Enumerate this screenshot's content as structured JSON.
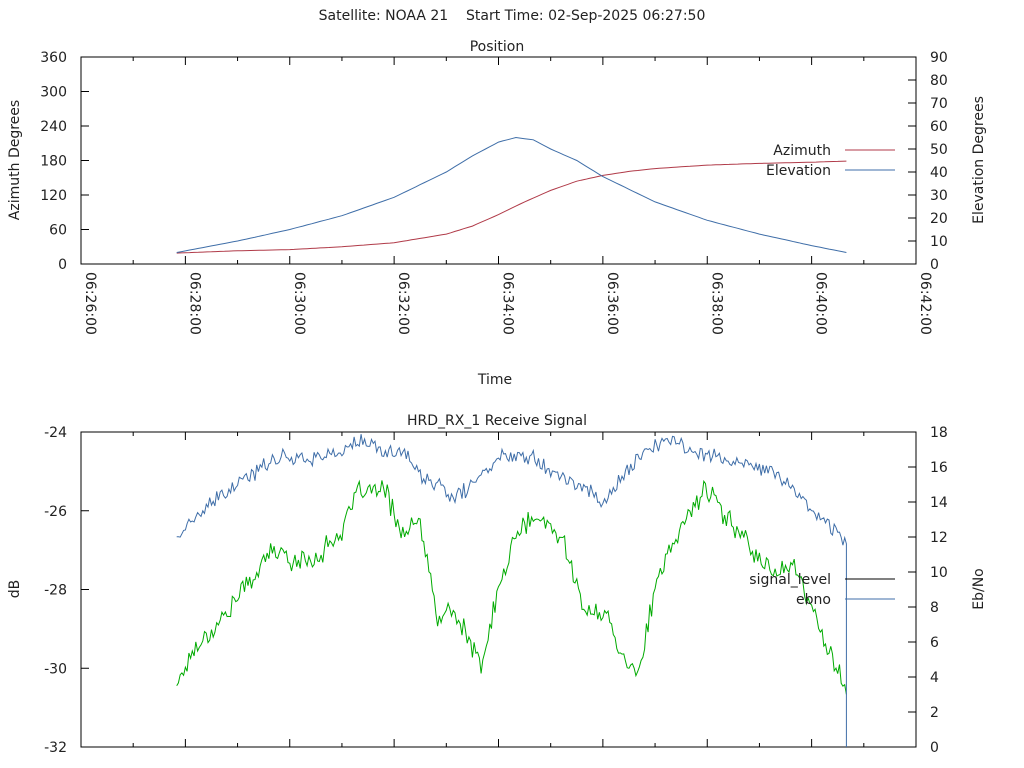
{
  "header": {
    "satellite": "Satellite: NOAA 21",
    "start_time": "Start Time: 02-Sep-2025 06:27:50"
  },
  "chart_data": [
    {
      "type": "line",
      "title": "Position",
      "xlabel": "Time",
      "ylabel": "Azimuth Degrees",
      "y2label": "Elevation Degrees",
      "xlim": [
        "06:26:00",
        "06:42:00"
      ],
      "ylim": [
        0,
        360
      ],
      "y2lim": [
        0,
        90
      ],
      "x_ticks": [
        "06:26:00",
        "06:28:00",
        "06:30:00",
        "06:32:00",
        "06:34:00",
        "06:36:00",
        "06:38:00",
        "06:40:00",
        "06:42:00"
      ],
      "y_ticks": [
        "0",
        "60",
        "120",
        "180",
        "240",
        "300",
        "360"
      ],
      "y2_ticks": [
        "0",
        "10",
        "20",
        "30",
        "40",
        "50",
        "60",
        "70",
        "80",
        "90"
      ],
      "legend_position": "right",
      "grid": false,
      "series": [
        {
          "name": "Azimuth",
          "axis": "left",
          "color": "#b03a48",
          "x": [
            "06:27:50",
            "06:29:00",
            "06:30:00",
            "06:31:00",
            "06:32:00",
            "06:33:00",
            "06:33:30",
            "06:34:00",
            "06:34:30",
            "06:35:00",
            "06:35:30",
            "06:36:00",
            "06:36:30",
            "06:37:00",
            "06:38:00",
            "06:39:00",
            "06:40:00",
            "06:40:40"
          ],
          "values": [
            19,
            23,
            25,
            30,
            37,
            52,
            66,
            86,
            108,
            128,
            144,
            154,
            161,
            166,
            172,
            175,
            177,
            179
          ]
        },
        {
          "name": "Elevation",
          "axis": "right",
          "color": "#3f6ea8",
          "x": [
            "06:27:50",
            "06:29:00",
            "06:30:00",
            "06:31:00",
            "06:32:00",
            "06:33:00",
            "06:33:30",
            "06:34:00",
            "06:34:20",
            "06:34:40",
            "06:35:00",
            "06:35:30",
            "06:36:00",
            "06:37:00",
            "06:38:00",
            "06:39:00",
            "06:40:00",
            "06:40:40"
          ],
          "values": [
            5,
            10,
            15,
            21,
            29,
            40,
            47,
            53,
            55,
            54,
            50,
            45,
            38,
            27,
            19,
            13,
            8,
            5
          ]
        }
      ]
    },
    {
      "type": "line",
      "title": "HRD_RX_1 Receive Signal",
      "ylabel": "dB",
      "y2label": "Eb/No",
      "xlim": [
        "06:26:00",
        "06:42:00"
      ],
      "ylim": [
        -32,
        -24
      ],
      "y2lim": [
        0,
        18
      ],
      "y_ticks": [
        "-24",
        "-26",
        "-28",
        "-30",
        "-32"
      ],
      "y2_ticks": [
        "0",
        "2",
        "4",
        "6",
        "8",
        "10",
        "12",
        "14",
        "16",
        "18"
      ],
      "legend_position": "right",
      "grid": false,
      "series": [
        {
          "name": "signal_level",
          "axis": "left",
          "color": "#00aa00",
          "legend_color": "#000000",
          "x": [
            "06:27:50",
            "06:28:10",
            "06:28:40",
            "06:29:10",
            "06:29:40",
            "06:30:10",
            "06:30:30",
            "06:31:00",
            "06:31:20",
            "06:31:50",
            "06:32:10",
            "06:32:30",
            "06:32:50",
            "06:33:05",
            "06:33:20",
            "06:33:40",
            "06:34:00",
            "06:34:20",
            "06:34:40",
            "06:35:00",
            "06:35:20",
            "06:35:40",
            "06:36:00",
            "06:36:20",
            "06:36:40",
            "06:37:00",
            "06:37:20",
            "06:37:40",
            "06:38:00",
            "06:38:20",
            "06:38:40",
            "06:39:00",
            "06:39:20",
            "06:39:40",
            "06:40:00",
            "06:40:20",
            "06:40:40"
          ],
          "values": [
            -30.4,
            -29.5,
            -28.8,
            -27.9,
            -27.0,
            -27.3,
            -27.2,
            -26.5,
            -25.5,
            -25.5,
            -26.6,
            -26.3,
            -28.8,
            -28.5,
            -29.0,
            -30.0,
            -28.0,
            -26.6,
            -26.2,
            -26.4,
            -27.0,
            -28.7,
            -28.5,
            -29.5,
            -30.2,
            -28.0,
            -26.9,
            -26.0,
            -25.4,
            -26.2,
            -26.5,
            -27.3,
            -27.5,
            -27.4,
            -28.5,
            -29.5,
            -30.6
          ]
        },
        {
          "name": "ebno",
          "axis": "right",
          "color": "#3f6ea8",
          "x": [
            "06:27:50",
            "06:28:10",
            "06:28:40",
            "06:29:10",
            "06:29:40",
            "06:30:10",
            "06:30:30",
            "06:31:00",
            "06:31:20",
            "06:31:50",
            "06:32:10",
            "06:32:30",
            "06:32:50",
            "06:33:05",
            "06:33:20",
            "06:33:40",
            "06:34:00",
            "06:34:20",
            "06:34:40",
            "06:35:00",
            "06:35:20",
            "06:35:40",
            "06:36:00",
            "06:36:20",
            "06:36:40",
            "06:37:00",
            "06:37:20",
            "06:37:40",
            "06:38:00",
            "06:38:20",
            "06:38:40",
            "06:39:00",
            "06:39:20",
            "06:39:40",
            "06:40:00",
            "06:40:20",
            "06:40:40"
          ],
          "values": [
            12.0,
            13.0,
            14.3,
            15.3,
            16.5,
            16.6,
            16.5,
            16.9,
            17.5,
            16.8,
            17.0,
            15.5,
            15.0,
            14.2,
            14.6,
            15.5,
            16.5,
            16.8,
            16.6,
            15.9,
            15.2,
            14.8,
            14.0,
            15.2,
            16.6,
            17.2,
            17.5,
            17.0,
            16.8,
            16.4,
            16.1,
            15.9,
            15.6,
            14.7,
            13.6,
            12.7,
            11.7
          ]
        }
      ]
    }
  ]
}
